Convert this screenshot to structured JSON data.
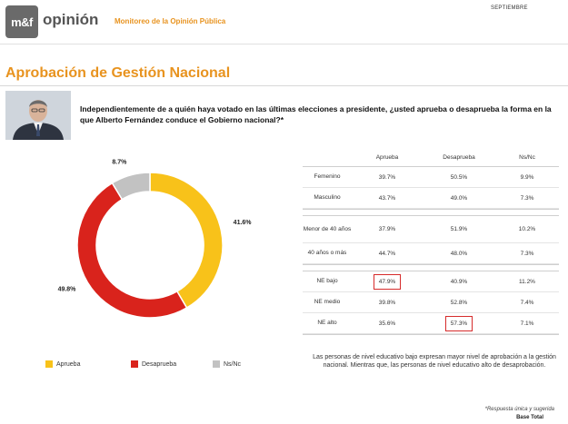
{
  "header": {
    "logo_text": "m&f",
    "brand_word": "opinión",
    "subtitle": "Monitoreo de la Opinión Pública",
    "month": "SEPTIEMBRE"
  },
  "title": "Aprobación de Gestión Nacional",
  "question": "Independientemente de a quién haya votado en las últimas elecciones a presidente, ¿usted aprueba o desaprueba la forma en la que Alberto Fernández conduce el Gobierno nacional?*",
  "colors": {
    "aprueba": "#f8c21a",
    "desaprueba": "#d9231c",
    "nsnc": "#c2c2c2",
    "accent": "#e8931f",
    "highlight": "#d62b2b"
  },
  "chart_data": [
    {
      "type": "pie",
      "style": "donut",
      "categories": [
        "Aprueba",
        "Desaprueba",
        "Ns/Nc"
      ],
      "values": [
        41.6,
        49.8,
        8.7
      ],
      "labels": [
        "41.6%",
        "49.8%",
        "8.7%"
      ],
      "legend_position": "bottom"
    },
    {
      "type": "table",
      "columns": [
        "",
        "Aprueba",
        "Desaprueba",
        "Ns/Nc"
      ],
      "groups": [
        {
          "rows": [
            {
              "label": "Femenino",
              "values": [
                "39.7%",
                "50.5%",
                "9.9%"
              ],
              "highlight": -1
            },
            {
              "label": "Masculino",
              "values": [
                "43.7%",
                "49.0%",
                "7.3%"
              ],
              "highlight": -1
            }
          ]
        },
        {
          "rows": [
            {
              "label": "Menor de 40 años",
              "values": [
                "37.9%",
                "51.9%",
                "10.2%"
              ],
              "highlight": -1
            },
            {
              "label": "40 años o más",
              "values": [
                "44.7%",
                "48.0%",
                "7.3%"
              ],
              "highlight": -1
            }
          ]
        },
        {
          "rows": [
            {
              "label": "NE bajo",
              "values": [
                "47.9%",
                "40.9%",
                "11.2%"
              ],
              "highlight": 0
            },
            {
              "label": "NE medio",
              "values": [
                "39.8%",
                "52.8%",
                "7.4%"
              ],
              "highlight": -1
            },
            {
              "label": "NE alto",
              "values": [
                "35.6%",
                "57.3%",
                "7.1%"
              ],
              "highlight": 1
            }
          ]
        }
      ]
    }
  ],
  "note": "Las personas de nivel educativo bajo expresan mayor nivel de aprobación a la gestión nacional. Mientras que, las personas de nivel educativo alto de desaprobación.",
  "footnote": "*Respuesta única y sugerida",
  "base": "Base Total"
}
